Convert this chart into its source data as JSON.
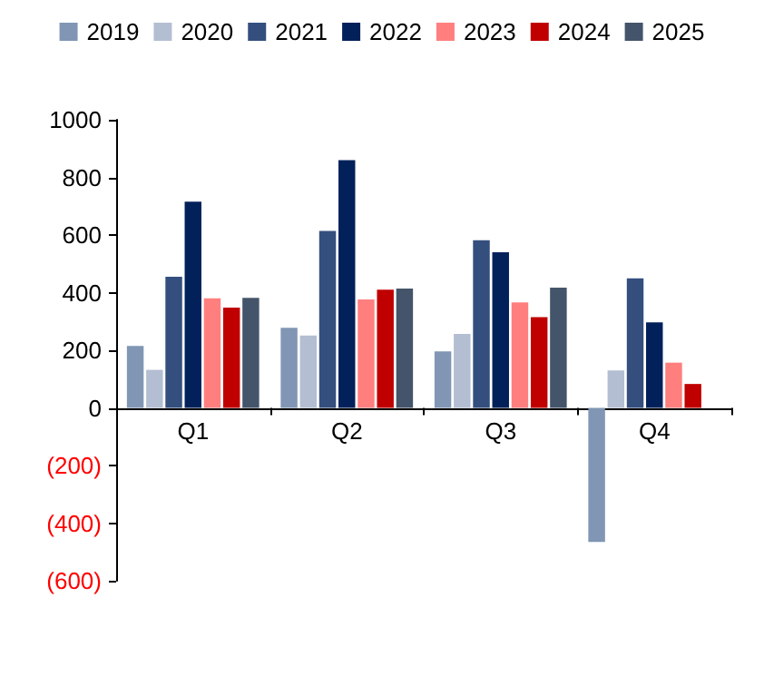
{
  "chart_data": {
    "type": "bar",
    "categories": [
      "Q1",
      "Q2",
      "Q3",
      "Q4"
    ],
    "series": [
      {
        "name": "2019",
        "color": "#8096b4",
        "values": [
          215,
          278,
          196,
          -465
        ]
      },
      {
        "name": "2020",
        "color": "#b4bed2",
        "values": [
          132,
          251,
          257,
          130
        ]
      },
      {
        "name": "2021",
        "color": "#344f7e",
        "values": [
          455,
          614,
          582,
          450
        ]
      },
      {
        "name": "2022",
        "color": "#02215a",
        "values": [
          716,
          860,
          540,
          297
        ]
      },
      {
        "name": "2023",
        "color": "#ff7f7f",
        "values": [
          380,
          376,
          366,
          157
        ]
      },
      {
        "name": "2024",
        "color": "#c00000",
        "values": [
          348,
          410,
          315,
          83
        ]
      },
      {
        "name": "2025",
        "color": "#44546a",
        "values": [
          382,
          414,
          417,
          null
        ]
      }
    ],
    "ylim": [
      -600,
      1000
    ],
    "yticks": [
      {
        "value": -600,
        "label": "(600)"
      },
      {
        "value": -400,
        "label": "(400)"
      },
      {
        "value": -200,
        "label": "(200)"
      },
      0,
      200,
      400,
      600,
      800,
      1000
    ],
    "legend": "top"
  }
}
